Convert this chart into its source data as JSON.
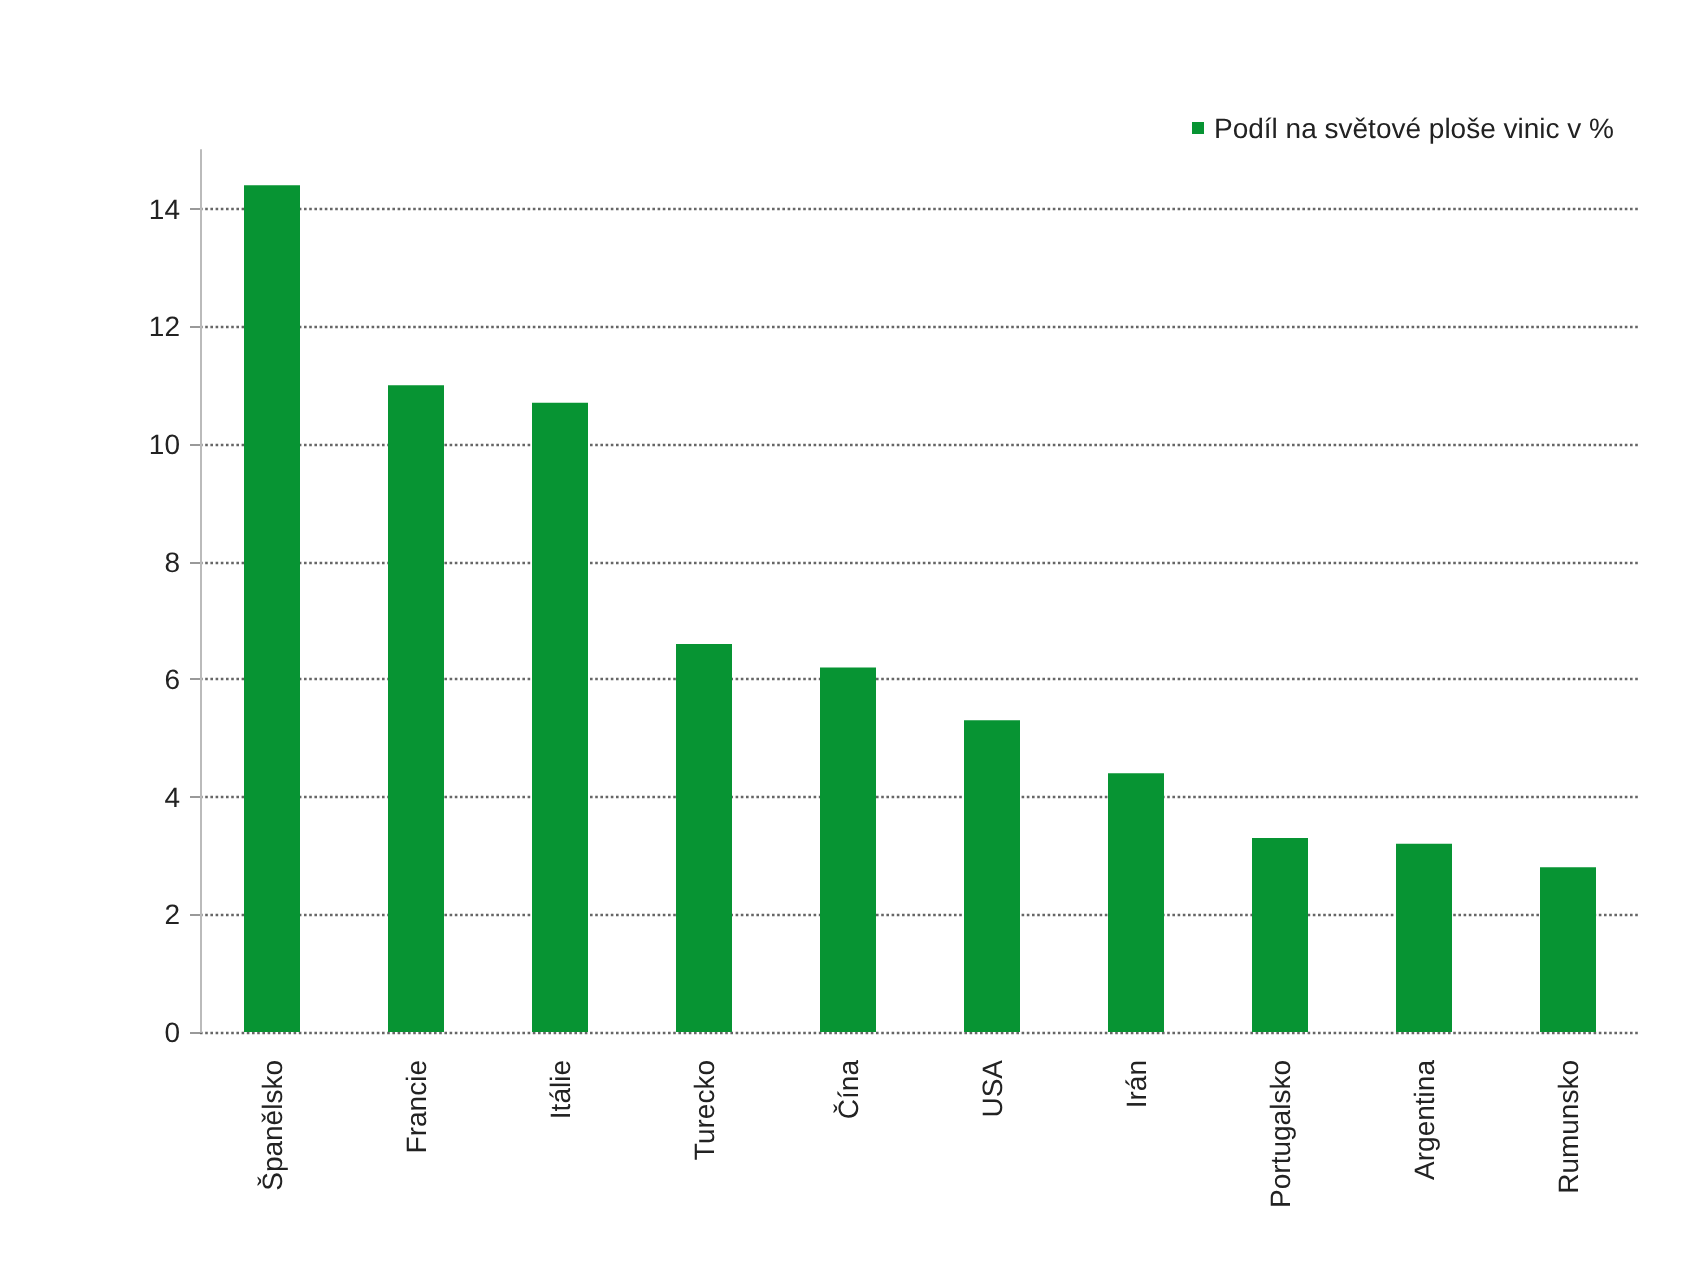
{
  "chart_data": {
    "type": "bar",
    "categories": [
      "Španělsko",
      "Francie",
      "Itálie",
      "Turecko",
      "Čína",
      "USA",
      "Irán",
      "Portugalsko",
      "Argentina",
      "Rumunsko"
    ],
    "series": [
      {
        "name": "Podíl na světové ploše vinic v %",
        "color": "#079433",
        "values": [
          14.4,
          11.0,
          10.7,
          6.6,
          6.2,
          5.3,
          4.4,
          3.3,
          3.2,
          2.8
        ]
      }
    ],
    "ylim": [
      0,
      15
    ],
    "yticks": [
      0,
      2,
      4,
      6,
      8,
      10,
      12,
      14
    ],
    "grid": "y",
    "legend": "top right"
  }
}
